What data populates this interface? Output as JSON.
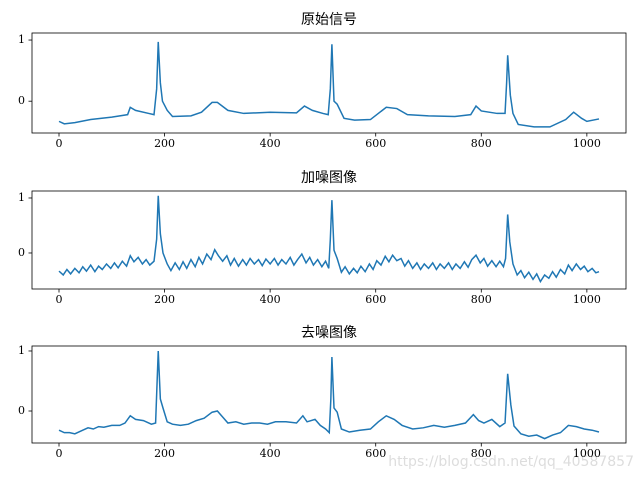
{
  "chart_data": [
    {
      "type": "line",
      "title": "原始信号",
      "color": "#1f77b4",
      "x": [
        0,
        10,
        30,
        60,
        100,
        130,
        135,
        145,
        170,
        180,
        185,
        188,
        192,
        196,
        205,
        215,
        250,
        270,
        290,
        300,
        320,
        350,
        400,
        450,
        465,
        480,
        500,
        510,
        514,
        517,
        521,
        527,
        540,
        560,
        590,
        620,
        640,
        660,
        700,
        750,
        780,
        790,
        800,
        830,
        845,
        848,
        850,
        855,
        860,
        870,
        900,
        930,
        960,
        975,
        990,
        1000,
        1023
      ],
      "values": [
        -0.33,
        -0.37,
        -0.35,
        -0.3,
        -0.26,
        -0.22,
        -0.1,
        -0.15,
        -0.2,
        -0.22,
        0.2,
        0.97,
        0.3,
        0.0,
        -0.15,
        -0.25,
        -0.24,
        -0.18,
        -0.02,
        -0.02,
        -0.15,
        -0.2,
        -0.18,
        -0.19,
        -0.08,
        -0.15,
        -0.2,
        -0.22,
        0.2,
        0.93,
        0.0,
        -0.05,
        -0.28,
        -0.31,
        -0.3,
        -0.1,
        -0.12,
        -0.22,
        -0.24,
        -0.25,
        -0.22,
        -0.08,
        -0.16,
        -0.2,
        -0.2,
        0.3,
        0.75,
        0.1,
        -0.2,
        -0.38,
        -0.42,
        -0.42,
        -0.3,
        -0.18,
        -0.28,
        -0.33,
        -0.29
      ],
      "xlim": [
        -51.15,
        1074.15
      ],
      "ylim": [
        -0.52,
        1.115
      ],
      "xticks": [
        0,
        200,
        400,
        600,
        800,
        1000
      ],
      "yticks": [
        0,
        1
      ]
    },
    {
      "type": "line",
      "title": "加噪图像",
      "color": "#1f77b4",
      "x": [
        0,
        8,
        15,
        22,
        30,
        38,
        45,
        52,
        60,
        68,
        75,
        82,
        90,
        98,
        105,
        112,
        120,
        128,
        135,
        142,
        150,
        158,
        165,
        172,
        180,
        185,
        188,
        192,
        197,
        205,
        212,
        220,
        228,
        235,
        242,
        250,
        258,
        265,
        272,
        280,
        288,
        295,
        302,
        310,
        318,
        325,
        332,
        340,
        348,
        355,
        362,
        370,
        378,
        385,
        392,
        400,
        408,
        415,
        422,
        430,
        438,
        445,
        452,
        460,
        468,
        475,
        482,
        490,
        498,
        505,
        511,
        514,
        517,
        521,
        527,
        535,
        542,
        550,
        558,
        565,
        572,
        580,
        588,
        595,
        602,
        610,
        618,
        625,
        632,
        640,
        648,
        655,
        662,
        670,
        678,
        685,
        692,
        700,
        708,
        715,
        722,
        730,
        738,
        745,
        752,
        760,
        768,
        775,
        782,
        790,
        798,
        805,
        812,
        820,
        828,
        835,
        842,
        846,
        850,
        854,
        860,
        868,
        875,
        882,
        890,
        898,
        905,
        912,
        920,
        928,
        935,
        942,
        950,
        958,
        965,
        972,
        980,
        988,
        995,
        1002,
        1010,
        1017,
        1023
      ],
      "values": [
        -0.33,
        -0.4,
        -0.3,
        -0.38,
        -0.28,
        -0.36,
        -0.25,
        -0.33,
        -0.22,
        -0.34,
        -0.24,
        -0.3,
        -0.2,
        -0.28,
        -0.18,
        -0.27,
        -0.15,
        -0.24,
        -0.05,
        -0.16,
        -0.08,
        -0.2,
        -0.12,
        -0.22,
        -0.15,
        0.25,
        1.04,
        0.35,
        0.0,
        -0.2,
        -0.32,
        -0.18,
        -0.3,
        -0.16,
        -0.28,
        -0.12,
        -0.25,
        -0.08,
        -0.2,
        -0.02,
        -0.12,
        0.06,
        -0.05,
        -0.15,
        -0.05,
        -0.22,
        -0.1,
        -0.24,
        -0.12,
        -0.22,
        -0.1,
        -0.2,
        -0.12,
        -0.23,
        -0.11,
        -0.2,
        -0.1,
        -0.22,
        -0.12,
        -0.2,
        -0.08,
        -0.22,
        -0.12,
        -0.02,
        -0.18,
        -0.08,
        -0.22,
        -0.12,
        -0.25,
        -0.15,
        -0.28,
        0.25,
        0.96,
        0.05,
        -0.1,
        -0.35,
        -0.25,
        -0.38,
        -0.28,
        -0.36,
        -0.24,
        -0.34,
        -0.2,
        -0.3,
        -0.14,
        -0.22,
        -0.06,
        -0.16,
        -0.04,
        -0.14,
        -0.1,
        -0.24,
        -0.14,
        -0.28,
        -0.18,
        -0.3,
        -0.2,
        -0.28,
        -0.18,
        -0.3,
        -0.2,
        -0.28,
        -0.18,
        -0.3,
        -0.2,
        -0.28,
        -0.16,
        -0.26,
        -0.12,
        -0.04,
        -0.18,
        -0.1,
        -0.24,
        -0.14,
        -0.25,
        -0.15,
        -0.25,
        -0.1,
        0.7,
        0.2,
        -0.2,
        -0.4,
        -0.32,
        -0.45,
        -0.35,
        -0.48,
        -0.38,
        -0.52,
        -0.4,
        -0.46,
        -0.34,
        -0.44,
        -0.3,
        -0.38,
        -0.22,
        -0.32,
        -0.2,
        -0.3,
        -0.24,
        -0.34,
        -0.28,
        -0.36,
        -0.34
      ],
      "xlim": [
        -51.15,
        1074.15
      ],
      "ylim": [
        -0.655,
        1.127
      ],
      "xticks": [
        0,
        200,
        400,
        600,
        800,
        1000
      ],
      "yticks": [
        0,
        1
      ]
    },
    {
      "type": "line",
      "title": "去噪图像",
      "color": "#1f77b4",
      "x": [
        0,
        10,
        20,
        30,
        45,
        55,
        65,
        75,
        85,
        100,
        115,
        125,
        135,
        145,
        160,
        175,
        183,
        188,
        192,
        197,
        205,
        215,
        230,
        245,
        260,
        275,
        290,
        300,
        310,
        320,
        335,
        350,
        365,
        380,
        395,
        410,
        430,
        450,
        462,
        470,
        485,
        495,
        505,
        512,
        515,
        517,
        521,
        527,
        535,
        550,
        570,
        590,
        605,
        620,
        635,
        650,
        670,
        690,
        710,
        730,
        750,
        770,
        785,
        795,
        805,
        820,
        835,
        845,
        850,
        856,
        862,
        875,
        890,
        905,
        920,
        935,
        950,
        965,
        980,
        995,
        1010,
        1023
      ],
      "values": [
        -0.32,
        -0.36,
        -0.36,
        -0.38,
        -0.32,
        -0.28,
        -0.3,
        -0.26,
        -0.27,
        -0.24,
        -0.24,
        -0.2,
        -0.08,
        -0.14,
        -0.16,
        -0.22,
        -0.2,
        1.0,
        0.2,
        0.05,
        -0.18,
        -0.22,
        -0.24,
        -0.22,
        -0.16,
        -0.12,
        -0.02,
        0.0,
        -0.1,
        -0.2,
        -0.18,
        -0.22,
        -0.2,
        -0.2,
        -0.22,
        -0.18,
        -0.18,
        -0.2,
        -0.08,
        -0.18,
        -0.14,
        -0.24,
        -0.3,
        -0.36,
        0.2,
        0.9,
        0.05,
        -0.02,
        -0.3,
        -0.35,
        -0.32,
        -0.3,
        -0.18,
        -0.08,
        -0.14,
        -0.24,
        -0.3,
        -0.28,
        -0.24,
        -0.27,
        -0.24,
        -0.2,
        -0.06,
        -0.16,
        -0.2,
        -0.14,
        -0.26,
        -0.2,
        0.62,
        0.1,
        -0.25,
        -0.38,
        -0.42,
        -0.4,
        -0.46,
        -0.4,
        -0.36,
        -0.24,
        -0.26,
        -0.3,
        -0.32,
        -0.35
      ],
      "xlim": [
        -51.15,
        1074.15
      ],
      "ylim": [
        -0.533,
        1.083
      ],
      "xticks": [
        0,
        200,
        400,
        600,
        800,
        1000
      ],
      "yticks": [
        0,
        1
      ]
    }
  ],
  "watermark": "https://blog.csdn.net/qq_40587857"
}
